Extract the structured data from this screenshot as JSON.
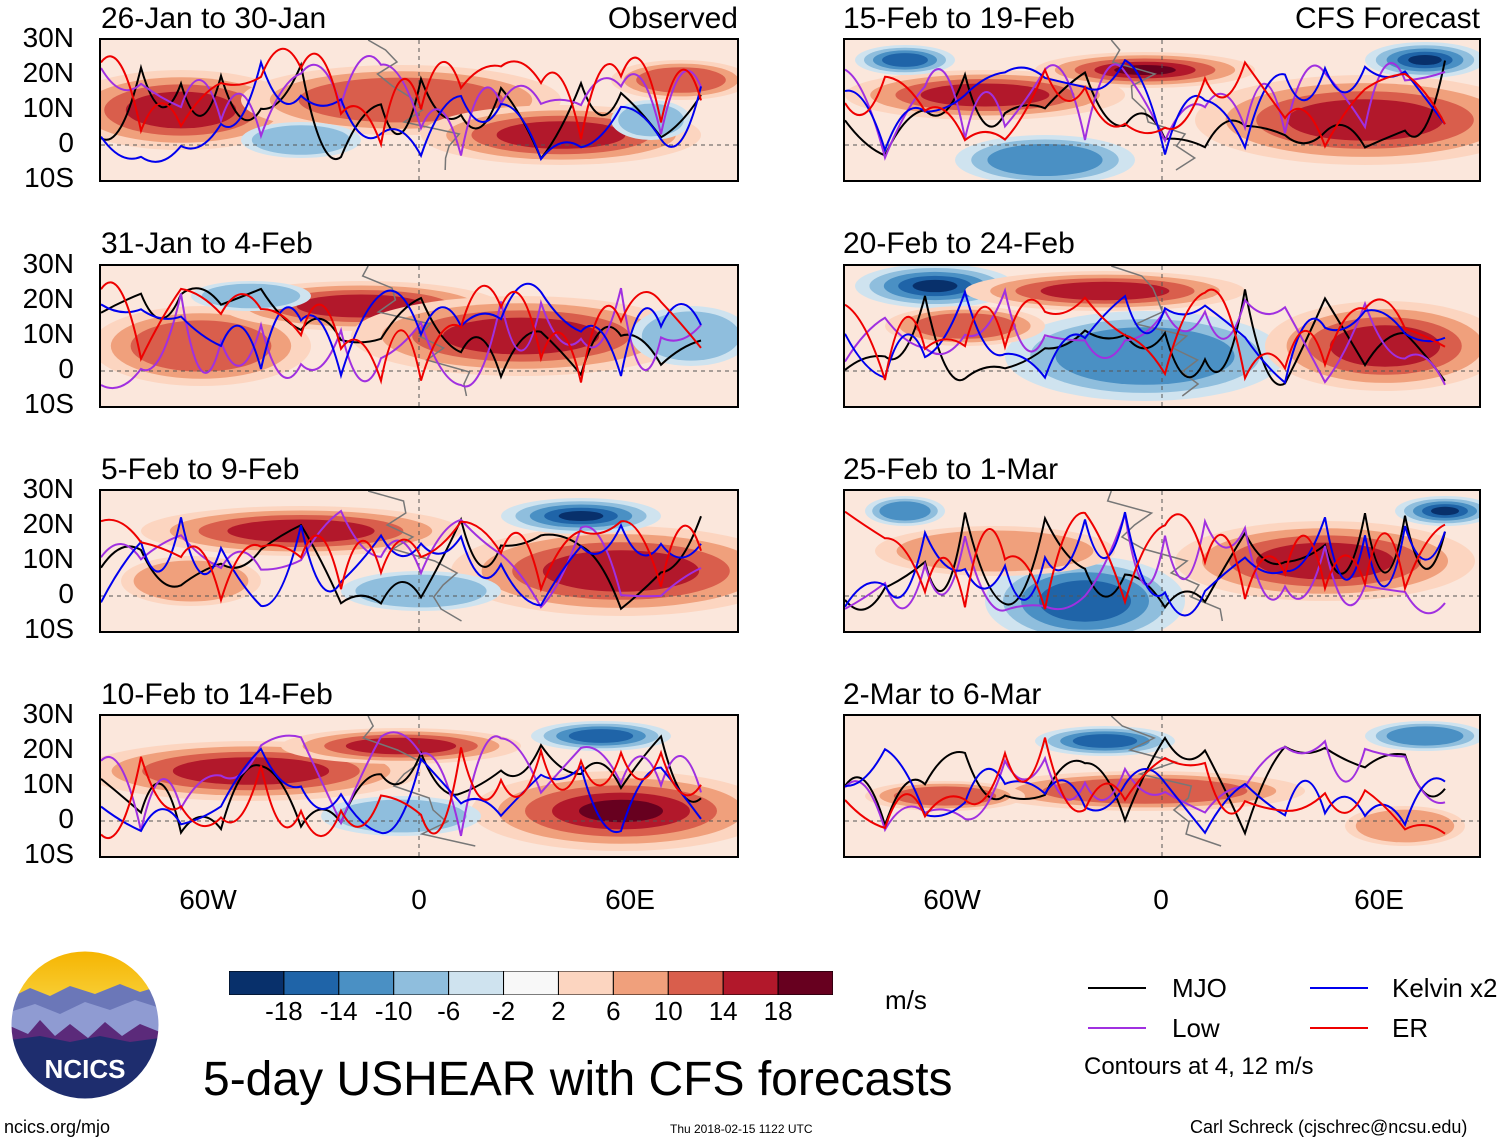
{
  "title": "5-day USHEAR with CFS forecasts",
  "left_column_label": "Observed",
  "right_column_label": "CFS Forecast",
  "lat_ticks": [
    "30N",
    "20N",
    "10N",
    "0",
    "10S"
  ],
  "lon_ticks": [
    "60W",
    "0",
    "60E"
  ],
  "panels": [
    {
      "period": "26-Jan to 30-Jan",
      "column": "left",
      "row": 0
    },
    {
      "period": "31-Jan to 4-Feb",
      "column": "left",
      "row": 1
    },
    {
      "period": "5-Feb to 9-Feb",
      "column": "left",
      "row": 2
    },
    {
      "period": "10-Feb to 14-Feb",
      "column": "left",
      "row": 3
    },
    {
      "period": "15-Feb to 19-Feb",
      "column": "right",
      "row": 0
    },
    {
      "period": "20-Feb to 24-Feb",
      "column": "right",
      "row": 1
    },
    {
      "period": "25-Feb to 1-Mar",
      "column": "right",
      "row": 2
    },
    {
      "period": "2-Mar to 6-Mar",
      "column": "right",
      "row": 3
    }
  ],
  "colorbar": {
    "labels": [
      "-18",
      "-14",
      "-10",
      "-6",
      "-2",
      "2",
      "6",
      "10",
      "14",
      "18"
    ],
    "colors": [
      "#08306b",
      "#1f64a8",
      "#4a90c4",
      "#8fbedd",
      "#cfe3ef",
      "#f8f8f8",
      "#fcd5c0",
      "#f0a07c",
      "#d95e4c",
      "#b2182b",
      "#67001f"
    ],
    "units": "m/s"
  },
  "legend": [
    {
      "label": "MJO",
      "color": "#000000"
    },
    {
      "label": "Kelvin x2",
      "color": "#0000ee"
    },
    {
      "label": "Low",
      "color": "#a030e0"
    },
    {
      "label": "ER",
      "color": "#ee0000"
    }
  ],
  "contour_note": "Contours at 4, 12 m/s",
  "logo_text": "NCICS",
  "footer": {
    "left": "ncics.org/mjo",
    "center": "Thu 2018-02-15 1122 UTC",
    "right": "Carl Schreck (cjschrec@ncsu.edu)"
  }
}
